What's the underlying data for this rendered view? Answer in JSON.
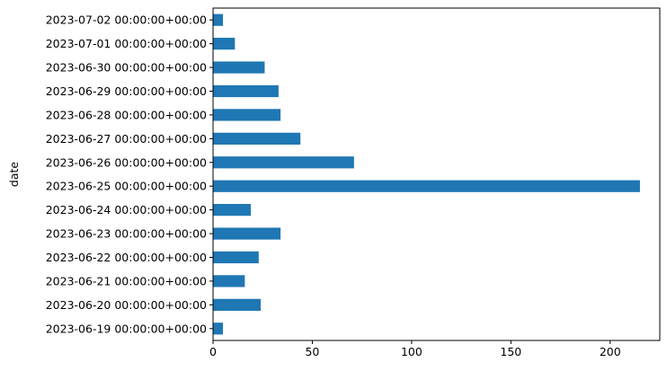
{
  "chart_data": {
    "type": "bar",
    "orientation": "horizontal",
    "categories": [
      "2023-06-19 00:00:00+00:00",
      "2023-06-20 00:00:00+00:00",
      "2023-06-21 00:00:00+00:00",
      "2023-06-22 00:00:00+00:00",
      "2023-06-23 00:00:00+00:00",
      "2023-06-24 00:00:00+00:00",
      "2023-06-25 00:00:00+00:00",
      "2023-06-26 00:00:00+00:00",
      "2023-06-27 00:00:00+00:00",
      "2023-06-28 00:00:00+00:00",
      "2023-06-29 00:00:00+00:00",
      "2023-06-30 00:00:00+00:00",
      "2023-07-01 00:00:00+00:00",
      "2023-07-02 00:00:00+00:00"
    ],
    "values": [
      5,
      24,
      16,
      23,
      34,
      19,
      215,
      71,
      44,
      34,
      33,
      26,
      11,
      5
    ],
    "xlim": [
      0,
      225
    ],
    "xticks": [
      0,
      50,
      100,
      150,
      200
    ],
    "xlabel": "",
    "ylabel": "date",
    "title": "",
    "bar_color": "#1f77b4",
    "grid": false,
    "legend": "none"
  }
}
